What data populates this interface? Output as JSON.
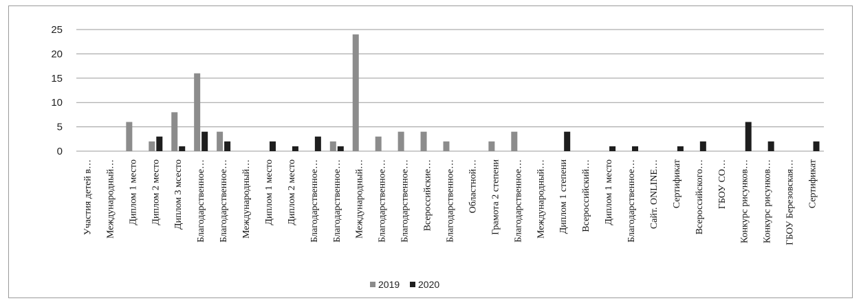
{
  "chart_data": {
    "type": "bar",
    "title": "",
    "xlabel": "",
    "ylabel": "",
    "ylim": [
      0,
      25
    ],
    "yticks": [
      0,
      5,
      10,
      15,
      20,
      25
    ],
    "grid": true,
    "legend_position": "bottom",
    "colors": {
      "2019": "#8c8c8c",
      "2020": "#1e1e1e",
      "grid": "#9a9a9a"
    },
    "categories": [
      "Участия детей в…",
      "Международный…",
      "Диплом 1 место",
      "Диплом 2 место",
      "Диплом 3 мсесто",
      "Благодарственное…",
      "Благодарственное…",
      "Международный…",
      "Диплом 1 место",
      "Диплом 2 место",
      "Благодарственное…",
      "Благодарственное…",
      "Международный…",
      "Благодарственное…",
      "Благодарственное…",
      "Всероссийские…",
      "Благодарственное…",
      "Областной…",
      "Грамота 2 степени",
      "Благодарственное…",
      "Международный…",
      "Диплом 1 степени",
      "Всероссийский…",
      "Диплом 1 место",
      "Благодарственное…",
      "Сайт. ONLINE…",
      "Сертификат",
      "Всероссийского…",
      "ГБОУ СО…",
      "Конкурс рисунков…",
      "Конкурс рисунков…",
      "ГБОУ Березовская…",
      "Сертификат"
    ],
    "series": [
      {
        "name": "2019",
        "values": [
          0,
          0,
          6,
          2,
          8,
          16,
          4,
          0,
          0,
          0,
          0,
          2,
          24,
          3,
          4,
          4,
          2,
          0,
          2,
          4,
          0,
          0,
          0,
          0,
          0,
          0,
          0,
          0,
          0,
          0,
          0,
          0,
          0
        ]
      },
      {
        "name": "2020",
        "values": [
          0,
          0,
          0,
          3,
          1,
          4,
          2,
          0,
          2,
          1,
          3,
          1,
          0,
          0,
          0,
          0,
          0,
          0,
          0,
          0,
          0,
          4,
          0,
          1,
          1,
          0,
          1,
          2,
          0,
          6,
          2,
          0,
          2
        ]
      }
    ]
  }
}
